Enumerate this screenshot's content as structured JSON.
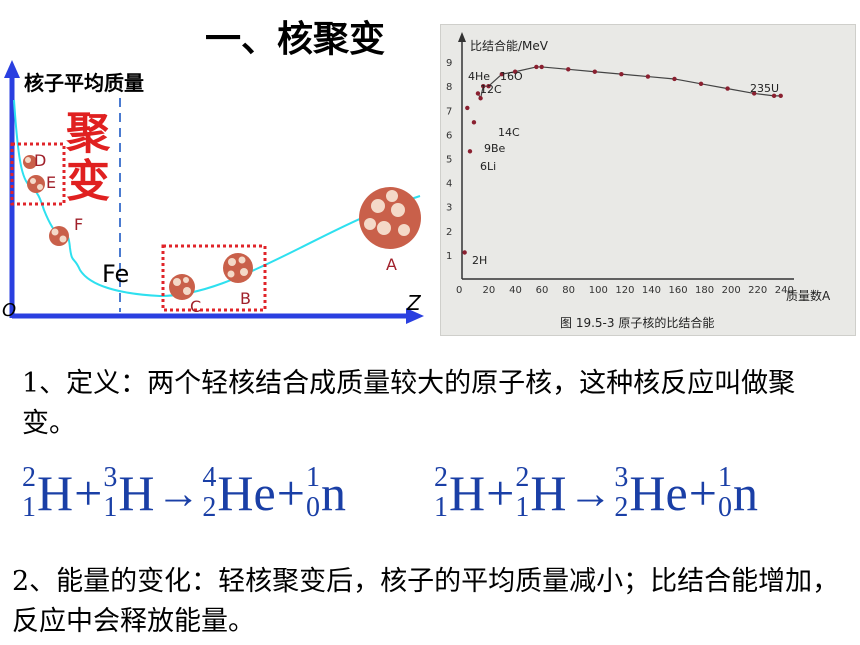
{
  "title": "一、核聚变",
  "left_diagram": {
    "y_axis_label": "核子平均质量",
    "x_axis_label": "Z",
    "origin_label": "O",
    "fusion_label_top": "聚",
    "fusion_label_bottom": "变",
    "fe_label": "Fe",
    "nucleus_labels": [
      "D",
      "E",
      "F",
      "C",
      "B",
      "A"
    ]
  },
  "photo_chart": {
    "ylabel": "比结合能/MeV",
    "xlabel": "质量数A",
    "caption": "图 19.5-3  原子核的比结合能",
    "y_ticks": [
      "1",
      "2",
      "3",
      "4",
      "5",
      "6",
      "7",
      "8",
      "9"
    ],
    "x_ticks": [
      "0",
      "20",
      "40",
      "60",
      "80",
      "100",
      "120",
      "140",
      "160",
      "180",
      "200",
      "220",
      "240"
    ],
    "annotations": {
      "he4": "4He",
      "c12": "12C",
      "o16": "16O",
      "c14": "14C",
      "be9": "9Be",
      "li6": "6Li",
      "h2": "2H",
      "u235": "235U"
    }
  },
  "chart_data": {
    "type": "scatter",
    "xlabel": "质量数A",
    "ylabel": "比结合能/MeV",
    "xlim": [
      0,
      250
    ],
    "ylim": [
      0,
      10
    ],
    "x": [
      2,
      4,
      6,
      9,
      12,
      14,
      16,
      20,
      30,
      40,
      56,
      60,
      80,
      100,
      120,
      140,
      160,
      180,
      200,
      220,
      235,
      240
    ],
    "y": [
      1.1,
      7.1,
      5.3,
      6.5,
      7.7,
      7.5,
      8.0,
      8.0,
      8.5,
      8.6,
      8.8,
      8.8,
      8.7,
      8.6,
      8.5,
      8.4,
      8.3,
      8.1,
      7.9,
      7.7,
      7.6,
      7.6
    ]
  },
  "definition": "1、定义：两个轻核结合成质量较大的原子核，这种核反应叫做聚变。",
  "equations": [
    {
      "terms": [
        {
          "sup": "2",
          "sub": "1",
          "sym": "H"
        },
        {
          "sup": "3",
          "sub": "1",
          "sym": "H"
        }
      ],
      "products": [
        {
          "sup": "4",
          "sub": "2",
          "sym": "He"
        },
        {
          "sup": "1",
          "sub": "0",
          "sym": "n"
        }
      ]
    },
    {
      "terms": [
        {
          "sup": "2",
          "sub": "1",
          "sym": "H"
        },
        {
          "sup": "2",
          "sub": "1",
          "sym": "H"
        }
      ],
      "products": [
        {
          "sup": "3",
          "sub": "2",
          "sym": "He"
        },
        {
          "sup": "1",
          "sub": "0",
          "sym": "n"
        }
      ]
    }
  ],
  "plus": "+",
  "arrow": "→",
  "energy_change": "2、能量的变化：轻核聚变后，核子的平均质量减小；比结合能增加，反应中会释放能量。"
}
